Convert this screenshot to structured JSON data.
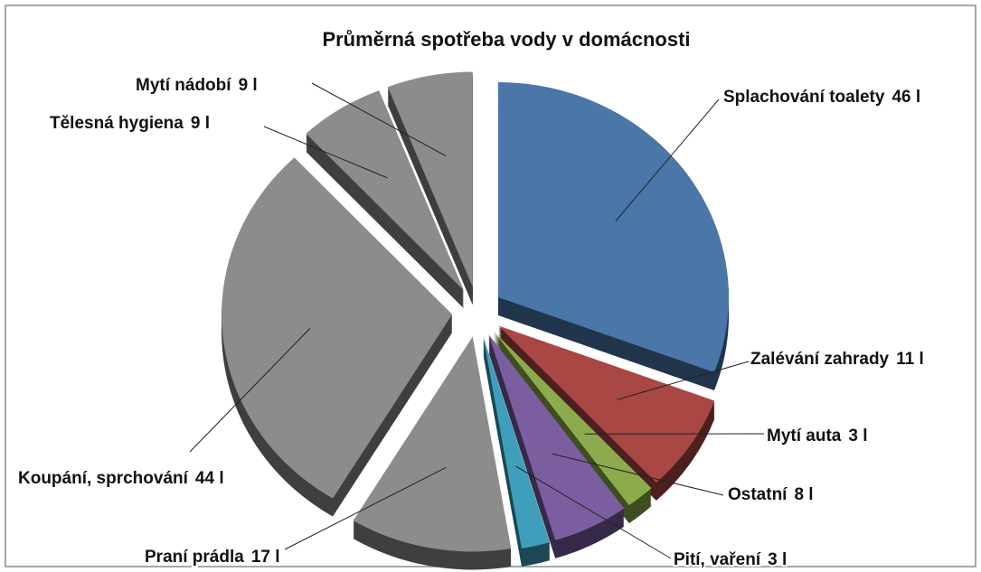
{
  "chart_data": {
    "type": "pie",
    "title": "Průměrná spotřeba vody v domácnosti",
    "categories": [
      "Splachování toalety",
      "Zalévání zahrady",
      "Mytí auta",
      "Ostatní",
      "Pití, vaření",
      "Praní prádla",
      "Koupání, sprchování",
      "Tělesná hygiena",
      "Mytí nádobí"
    ],
    "values": [
      46,
      11,
      3,
      8,
      3,
      17,
      44,
      9,
      9
    ],
    "value_labels": [
      "46 l",
      "11 l",
      "3 l",
      "8 l",
      "3 l",
      "17 l",
      "44 l",
      "9 l",
      "9 l"
    ],
    "colors": [
      "#4a76a8",
      "#a84744",
      "#8bab4c",
      "#7b5e9f",
      "#3f9fbb",
      "#8c8c8c",
      "#8c8c8c",
      "#8c8c8c",
      "#8c8c8c"
    ]
  }
}
